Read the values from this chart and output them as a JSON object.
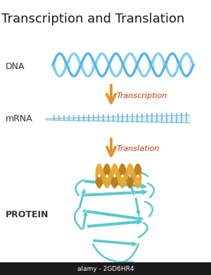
{
  "title": "Transcription and Translation",
  "title_fontsize": 13,
  "title_color": "#1a1a1a",
  "bg_color": "#ffffff",
  "label_dna": "DNA",
  "label_mrna": "mRNA",
  "label_protein": "PROTEIN",
  "label_fontsize": 9,
  "label_color": "#333333",
  "arrow1_label": "Transcription",
  "arrow2_label": "Translation",
  "arrow_label_color": "#cc3300",
  "arrow_label_fontsize": 8,
  "dna_color_strand1": "#7ecef4",
  "dna_color_strand2": "#5ab4e8",
  "dna_rung_color": "#a8d8f0",
  "mrna_backbone_color": "#a0bdd0",
  "mrna_rung_color": "#6bbde0",
  "protein_color": "#5bc8cc",
  "protein_color2": "#4ab5c0",
  "helix_color": "#e8a830",
  "helix_color2": "#c07810",
  "arrow_color": "#e8922a",
  "watermark_text": "alamy - 2GD6HR4",
  "watermark_bg": "#1a1a1a",
  "watermark_color": "#ffffff"
}
